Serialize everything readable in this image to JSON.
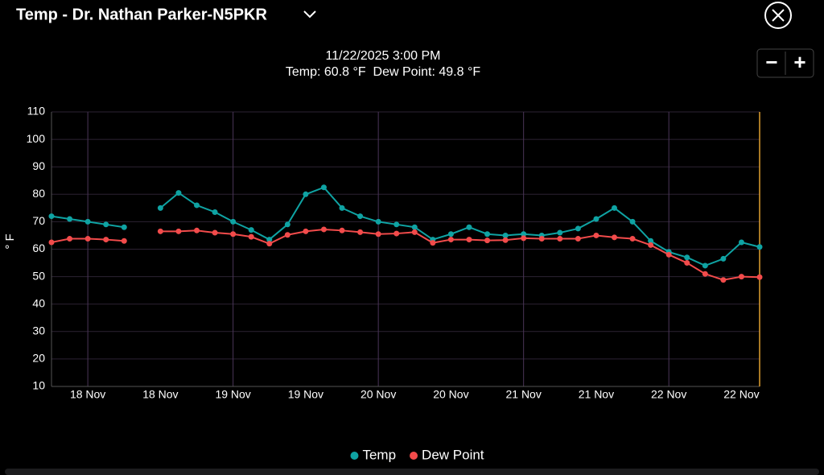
{
  "header": {
    "title": "Temp - Dr. Nathan Parker-N5PKR"
  },
  "tooltip": {
    "time": "11/22/2025 3:00 PM",
    "readout": "Temp: 60.8 °F  Dew Point: 49.8 °F"
  },
  "zoom": [
    "−",
    "+"
  ],
  "chart_data": {
    "type": "line",
    "ylabel": "° F",
    "categories": [
      null,
      null,
      "18 Nov",
      null,
      null,
      null,
      "18 Nov",
      null,
      null,
      null,
      "19 Nov",
      null,
      null,
      null,
      "19 Nov",
      null,
      null,
      null,
      "20 Nov",
      null,
      null,
      null,
      "20 Nov",
      null,
      null,
      null,
      "21 Nov",
      null,
      null,
      null,
      "21 Nov",
      null,
      null,
      null,
      "22 Nov",
      null,
      null,
      null,
      "22 Nov",
      null
    ],
    "series": [
      {
        "name": "Temp",
        "color": "#0fa3a3",
        "values": [
          72,
          71,
          70,
          69,
          68,
          null,
          75,
          80.5,
          76,
          73.5,
          70,
          67,
          63.5,
          69,
          80,
          82.5,
          75,
          72,
          70,
          69,
          68,
          63.5,
          65.5,
          68,
          65.5,
          65,
          65.5,
          65,
          66,
          67.5,
          71,
          75,
          70,
          63,
          59,
          57,
          54,
          56.5,
          62.5,
          60.8
        ]
      },
      {
        "name": "Dew Point",
        "color": "#f24b4b",
        "values": [
          62.5,
          63.8,
          63.8,
          63.5,
          63,
          null,
          66.5,
          66.5,
          66.8,
          66,
          65.5,
          64.5,
          62,
          65.2,
          66.5,
          67.2,
          66.8,
          66.2,
          65.5,
          65.7,
          66.2,
          62.3,
          63.5,
          63.5,
          63.2,
          63.3,
          64,
          63.8,
          63.8,
          63.8,
          65,
          64.3,
          63.8,
          61.5,
          58,
          55,
          51,
          48.8,
          50,
          49.8
        ]
      }
    ],
    "ylim": [
      10,
      110
    ],
    "yticks": [
      10,
      20,
      30,
      40,
      50,
      60,
      70,
      80,
      90,
      100,
      110
    ],
    "grid": true,
    "legend": "bottom"
  }
}
